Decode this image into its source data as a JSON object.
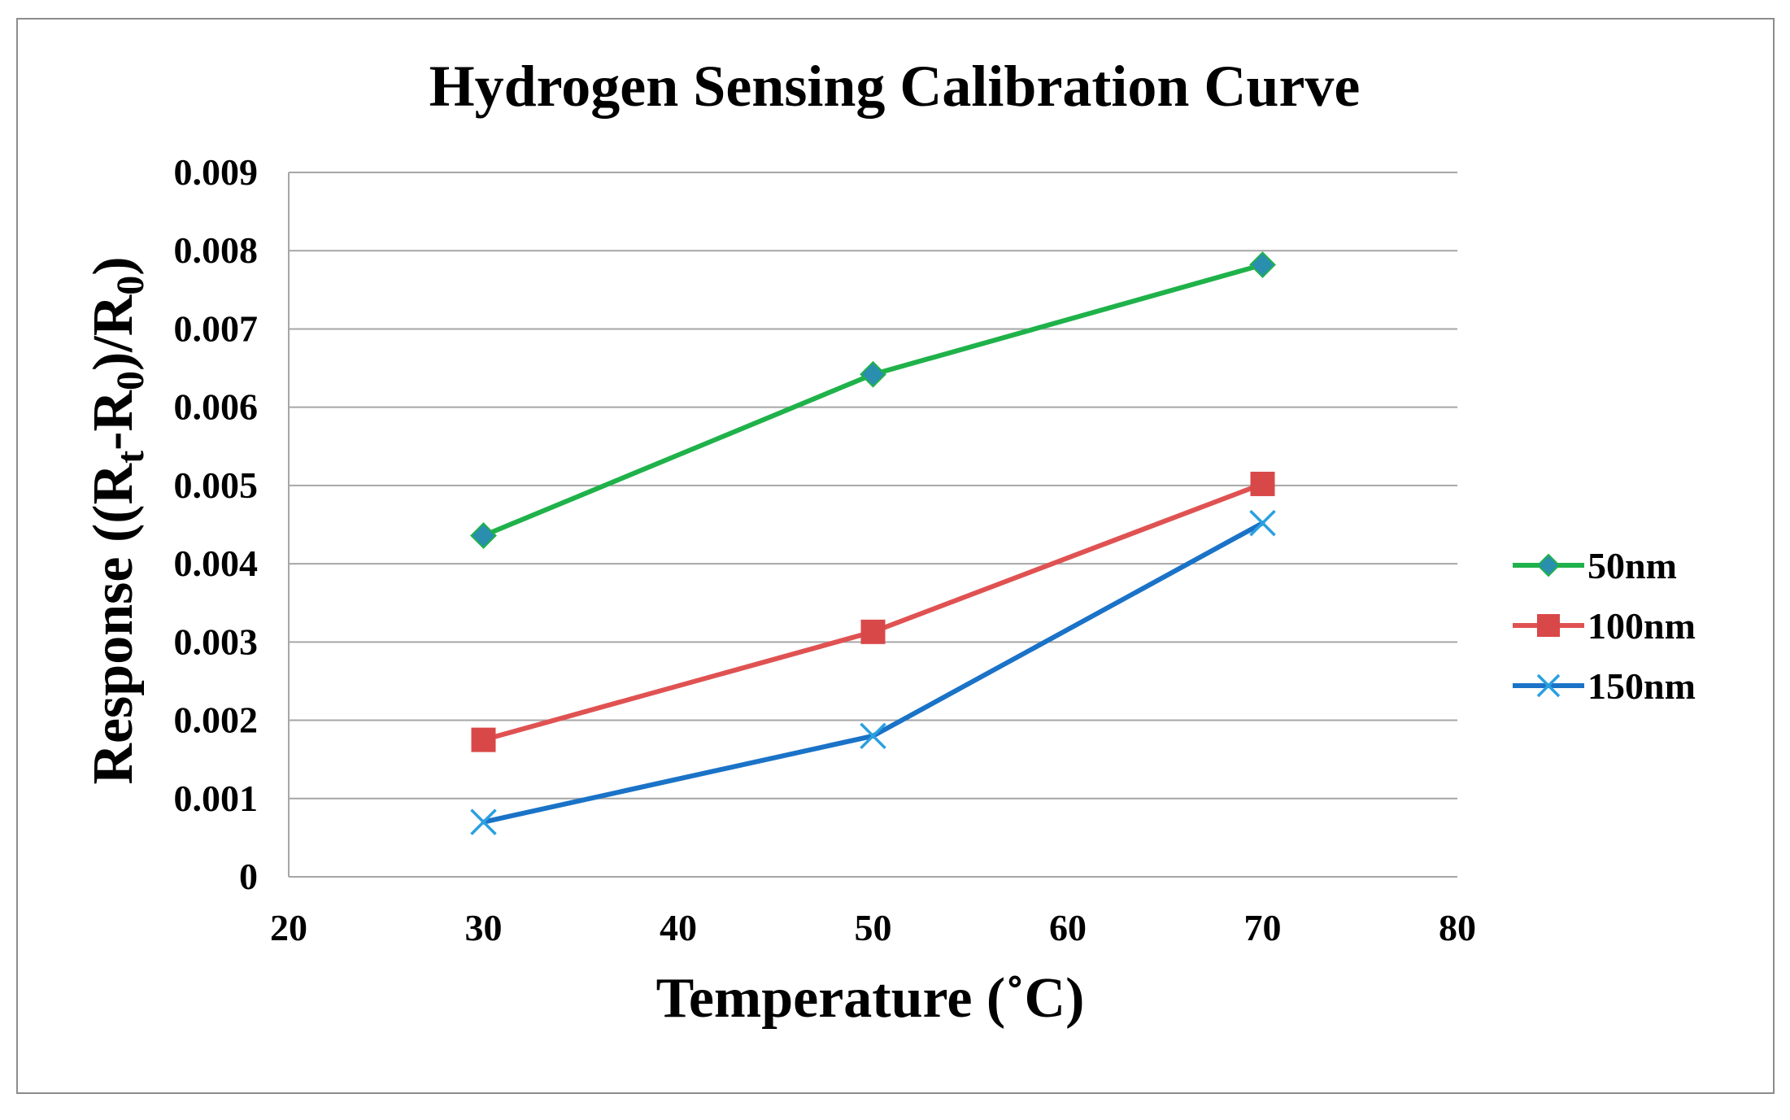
{
  "chart_data": {
    "type": "line",
    "title": "Hydrogen Sensing Calibration Curve",
    "xlabel": "Temperature (˚C)",
    "ylabel": {
      "prefix": "Response ((R",
      "sub1": "t",
      "mid": "-R",
      "sub2": "0",
      "mid2": ")/R",
      "sub3": "0",
      "suffix": ")"
    },
    "xlim": [
      20,
      80
    ],
    "ylim": [
      0,
      0.009
    ],
    "x_ticks": [
      "20",
      "30",
      "40",
      "50",
      "60",
      "70",
      "80"
    ],
    "y_ticks": [
      "0",
      "0.001",
      "0.002",
      "0.003",
      "0.004",
      "0.005",
      "0.006",
      "0.007",
      "0.008",
      "0.009"
    ],
    "grid": true,
    "legend_position": "right",
    "x": [
      30,
      50,
      70
    ],
    "series": [
      {
        "name": "50nm",
        "values": [
          0.00436,
          0.00642,
          0.00782
        ],
        "line_color": "#1fb24a",
        "marker_color": "#2a8fae",
        "marker": "diamond"
      },
      {
        "name": "100nm",
        "values": [
          0.00175,
          0.00313,
          0.00502
        ],
        "line_color": "#e05252",
        "marker_color": "#d94848",
        "marker": "square"
      },
      {
        "name": "150nm",
        "values": [
          0.0007,
          0.0018,
          0.00452
        ],
        "line_color": "#1a73c7",
        "marker_color": "#2aa0e0",
        "marker": "x"
      }
    ]
  }
}
